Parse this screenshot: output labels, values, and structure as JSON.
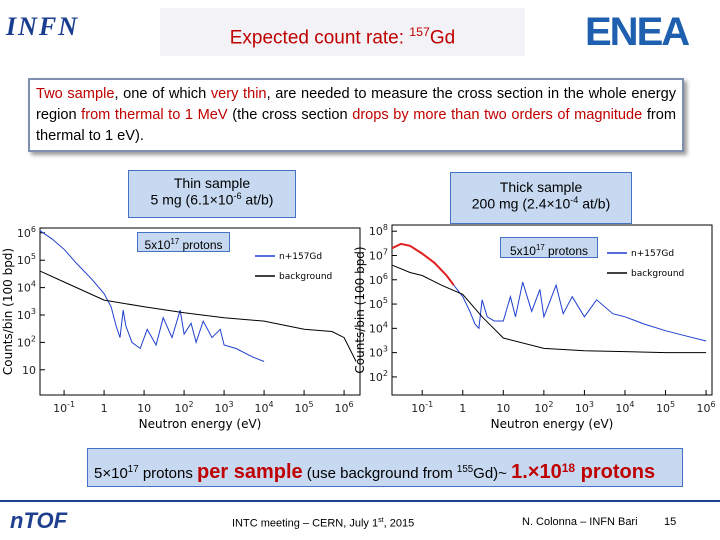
{
  "header": {
    "title": [
      "Expected count rate: ",
      {
        "sup": "157"
      },
      "Gd"
    ]
  },
  "logos": {
    "left": "INFN",
    "right": "ENEA",
    "footer": "nTOF"
  },
  "intro": [
    {
      "red": "Two sample"
    },
    ", one of which ",
    {
      "red": "very thin"
    },
    ", are needed to measure the cross section in the whole energy region ",
    {
      "red": "from thermal to 1 MeV"
    },
    " (the cross section ",
    {
      "red": "drops by more than two orders of magnitude"
    },
    " from thermal to 1 eV)."
  ],
  "samples": [
    {
      "title": [
        "Thin sample"
      ],
      "detail": [
        "5 mg  (6.1×10",
        {
          "sup": "-6"
        },
        " at/b)"
      ],
      "protons": [
        "5x10",
        {
          "sup": "17"
        },
        " protons"
      ]
    },
    {
      "title": [
        "Thick sample"
      ],
      "detail": [
        "200 mg (2.4×10",
        {
          "sup": "-4"
        },
        " at/b)"
      ],
      "protons": [
        "5x10",
        {
          "sup": "17"
        },
        " protons"
      ]
    }
  ],
  "chart_data": [
    {
      "type": "line",
      "xlabel": "Neutron energy (eV)",
      "ylabel": "Counts/bin (100 bpd)",
      "xscale": "log",
      "yscale": "log",
      "xlim": [
        0.025,
        2500000
      ],
      "ylim": [
        1.2,
        1500000
      ],
      "xticks": [
        {
          "value": 0.1,
          "label": "10",
          "sup": "-1"
        },
        1,
        10,
        {
          "value": 100,
          "label": "10",
          "sup": "2"
        },
        {
          "value": 1000,
          "label": "10",
          "sup": "3"
        },
        {
          "value": 10000,
          "label": "10",
          "sup": "4"
        },
        {
          "value": 100000,
          "label": "10",
          "sup": "5"
        },
        {
          "value": 1000000,
          "label": "10",
          "sup": "6"
        }
      ],
      "yticks": [
        10,
        {
          "value": 100,
          "label": "10",
          "sup": "2"
        },
        {
          "value": 1000,
          "label": "10",
          "sup": "3"
        },
        {
          "value": 10000,
          "label": "10",
          "sup": "4"
        },
        {
          "value": 100000,
          "label": "10",
          "sup": "5"
        },
        {
          "value": 1000000,
          "label": "10",
          "sup": "6"
        }
      ],
      "legend": "upper right",
      "series": [
        {
          "name": "n+157Gd",
          "color": "#1f3fd0",
          "x": [
            0.025,
            0.05,
            0.1,
            0.2,
            0.5,
            1,
            1.5,
            2,
            2.5,
            3,
            3.5,
            5,
            8,
            12,
            20,
            30,
            50,
            80,
            100,
            150,
            200,
            300,
            500,
            800,
            1000,
            2000,
            5000,
            10000
          ],
          "values": [
            1200000,
            600000,
            250000,
            80000,
            20000,
            6000,
            2000,
            400,
            150,
            1500,
            400,
            100,
            60,
            300,
            80,
            800,
            150,
            1500,
            200,
            500,
            100,
            600,
            150,
            300,
            80,
            60,
            30,
            20
          ]
        },
        {
          "name": "background",
          "color": "#000000",
          "x": [
            0.025,
            0.1,
            1,
            10,
            100,
            1000,
            10000,
            100000,
            500000,
            1000000,
            2000000
          ],
          "values": [
            40000,
            16000,
            3500,
            2000,
            1200,
            800,
            600,
            300,
            250,
            150,
            20
          ]
        }
      ]
    },
    {
      "type": "line",
      "xlabel": "Neutron energy (eV)",
      "ylabel": "Counts/bin (100 bpd)",
      "xscale": "log",
      "yscale": "log",
      "xlim": [
        0.018,
        1400000
      ],
      "ylim": [
        18,
        180000000
      ],
      "xticks": [
        {
          "value": 0.1,
          "label": "10",
          "sup": "-1"
        },
        1,
        10,
        {
          "value": 100,
          "label": "10",
          "sup": "2"
        },
        {
          "value": 1000,
          "label": "10",
          "sup": "3"
        },
        {
          "value": 10000,
          "label": "10",
          "sup": "4"
        },
        {
          "value": 100000,
          "label": "10",
          "sup": "5"
        },
        {
          "value": 1000000,
          "label": "10",
          "sup": "6"
        }
      ],
      "yticks": [
        {
          "value": 100,
          "label": "10",
          "sup": "2"
        },
        {
          "value": 1000,
          "label": "10",
          "sup": "3"
        },
        {
          "value": 10000,
          "label": "10",
          "sup": "4"
        },
        {
          "value": 100000,
          "label": "10",
          "sup": "5"
        },
        {
          "value": 1000000,
          "label": "10",
          "sup": "6"
        },
        {
          "value": 10000000,
          "label": "10",
          "sup": "7"
        },
        {
          "value": 100000000,
          "label": "10",
          "sup": "8"
        }
      ],
      "legend": "upper right",
      "series": [
        {
          "color": "#e02020",
          "x": [
            0.018,
            0.03,
            0.05,
            0.1,
            0.2,
            0.4,
            0.6
          ],
          "values": [
            20000000,
            30000000,
            25000000,
            12000000,
            5000000,
            1500000,
            600000
          ]
        },
        {
          "name": "n+157Gd",
          "color": "#1f3fd0",
          "x": [
            0.6,
            1,
            1.5,
            2,
            2.5,
            3,
            4,
            6,
            10,
            15,
            20,
            30,
            50,
            80,
            100,
            200,
            300,
            500,
            1000,
            2000,
            5000,
            10000,
            30000,
            100000,
            300000,
            1000000
          ],
          "values": [
            600000,
            200000,
            50000,
            15000,
            10000,
            150000,
            30000,
            20000,
            20000,
            200000,
            30000,
            800000,
            50000,
            400000,
            30000,
            600000,
            40000,
            200000,
            30000,
            150000,
            40000,
            30000,
            15000,
            8000,
            5000,
            3000
          ]
        },
        {
          "name": "background",
          "color": "#000000",
          "x": [
            0.018,
            0.05,
            0.1,
            0.3,
            1,
            3,
            10,
            100,
            1000,
            10000,
            100000,
            1000000
          ],
          "values": [
            4000000,
            2000000,
            1500000,
            600000,
            250000,
            30000,
            4000,
            1500,
            1200,
            1100,
            1000,
            1000
          ]
        }
      ]
    }
  ],
  "summary": [
    "5×10",
    {
      "sup": "17"
    },
    " protons ",
    {
      "red": "per sample"
    },
    "  (use background from ",
    {
      "sup": "155"
    },
    "Gd)~ ",
    {
      "red": "1.×10"
    },
    {
      "redsup": "18"
    },
    {
      "red": " protons"
    }
  ],
  "footer": {
    "meeting": [
      "INTC meeting – CERN, July 1",
      {
        "sup": "st"
      },
      ", 2015"
    ],
    "author": "N. Colonna – INFN Bari",
    "page": "15"
  }
}
